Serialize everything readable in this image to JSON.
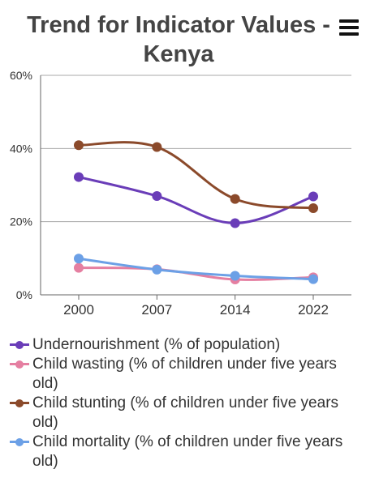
{
  "header": {
    "title_line1": "Trend for Indicator Values -",
    "title_line2": "Kenya",
    "menu_icon": "hamburger-menu-icon"
  },
  "chart_data": {
    "type": "line",
    "title": "Trend for Indicator Values - Kenya",
    "xlabel": "",
    "ylabel": "",
    "categories": [
      "2000",
      "2007",
      "2014",
      "2022"
    ],
    "y_ticks": [
      "0%",
      "20%",
      "40%",
      "60%"
    ],
    "ylim": [
      0,
      60
    ],
    "grid": true,
    "smooth": true,
    "legend_position": "bottom",
    "series": [
      {
        "name": "Undernourishment (% of population)",
        "color": "#6a3db8",
        "values": [
          32.2,
          27.0,
          19.6,
          26.9
        ]
      },
      {
        "name": "Child wasting (% of children under five years old)",
        "color": "#e57fa1",
        "values": [
          7.4,
          7.0,
          4.2,
          4.8
        ]
      },
      {
        "name": "Child stunting (% of children under five years old)",
        "color": "#8b4a2b",
        "values": [
          40.9,
          40.4,
          26.2,
          23.7
        ]
      },
      {
        "name": "Child mortality (% of children under five years old)",
        "color": "#6ca0e6",
        "values": [
          9.9,
          6.9,
          5.2,
          4.3
        ]
      }
    ]
  }
}
